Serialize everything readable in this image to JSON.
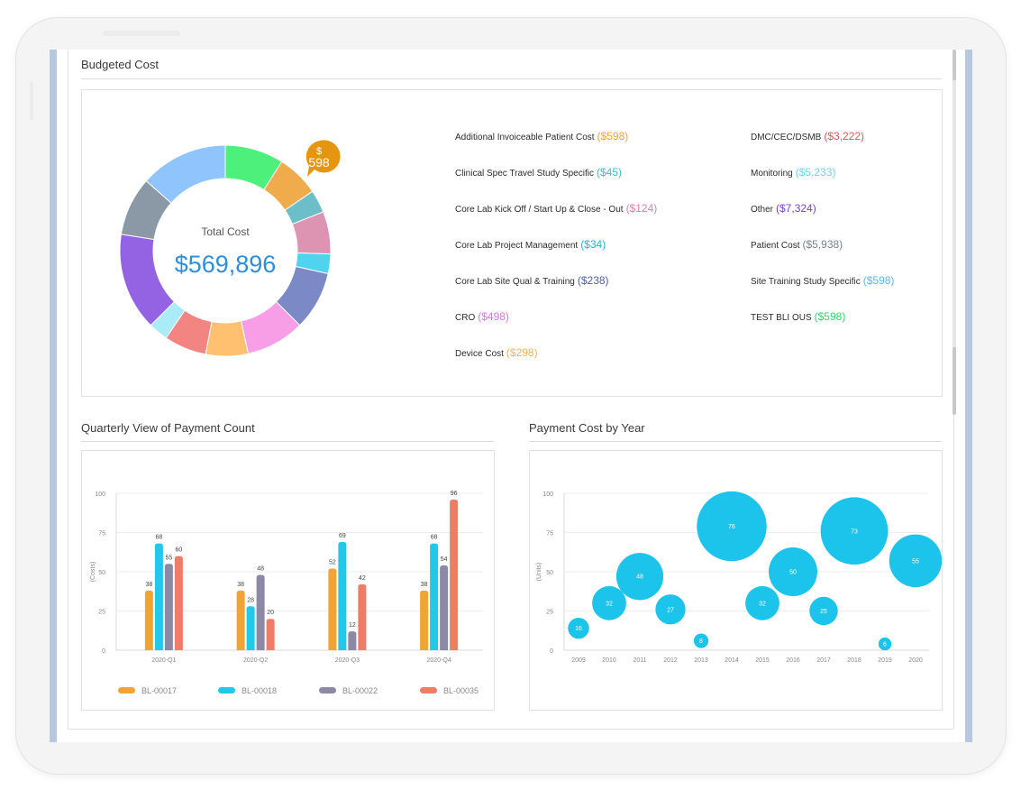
{
  "budgeted_cost": {
    "title": "Budgeted Cost",
    "center_label": "Total Cost",
    "center_value": "$569,896",
    "callout_currency": "$",
    "callout_value": "598",
    "legend": [
      {
        "label": "Additional Invoiceable Patient Cost",
        "amount": "($598)",
        "color": "#e9a43a"
      },
      {
        "label": "Clinical Spec Travel Study Specific",
        "amount": "($45)",
        "color": "#35bfd0"
      },
      {
        "label": "Core Lab Kick Off / Start Up & Close - Out",
        "amount": "($124)",
        "color": "#e07ea6"
      },
      {
        "label": "Core Lab Project Management",
        "amount": "($34)",
        "color": "#1fb6d7"
      },
      {
        "label": "Core Lab Site Qual & Training",
        "amount": "($238)",
        "color": "#4b5fa8"
      },
      {
        "label": "CRO",
        "amount": "($498)",
        "color": "#e46ee6"
      },
      {
        "label": "Device Cost",
        "amount": "($298)",
        "color": "#f5b45a"
      },
      {
        "label": "DMC/CEC/DSMB",
        "amount": "($3,222)",
        "color": "#e5545a"
      },
      {
        "label": "Monitoring",
        "amount": "($5,233)",
        "color": "#6fd3ea"
      },
      {
        "label": "Other",
        "amount": "($7,324)",
        "color": "#7f3fd6"
      },
      {
        "label": "Patient Cost",
        "amount": "($5,938)",
        "color": "#778391"
      },
      {
        "label": "Site Training Study Specific",
        "amount": "($598)",
        "color": "#5eb4f6"
      },
      {
        "label": "TEST BLI OUS",
        "amount": "($598)",
        "color": "#2fd66a"
      }
    ]
  },
  "chart_data": [
    {
      "type": "pie",
      "variant": "donut",
      "title": "Budgeted Cost",
      "segments": [
        {
          "color": "#4cf07a",
          "share": 0.09
        },
        {
          "color": "#efab4c",
          "share": 0.065
        },
        {
          "color": "#6cbfc8",
          "share": 0.035
        },
        {
          "color": "#dd93b2",
          "share": 0.065
        },
        {
          "color": "#4fd3ef",
          "share": 0.03
        },
        {
          "color": "#7b89c6",
          "share": 0.09
        },
        {
          "color": "#f79ee7",
          "share": 0.09
        },
        {
          "color": "#ffc170",
          "share": 0.065
        },
        {
          "color": "#f28482",
          "share": 0.065
        },
        {
          "color": "#a9ecf8",
          "share": 0.03
        },
        {
          "color": "#9463e3",
          "share": 0.15
        },
        {
          "color": "#8b99a6",
          "share": 0.09
        },
        {
          "color": "#8fc5fc",
          "share": 0.135
        }
      ]
    },
    {
      "type": "bar",
      "title": "Quarterly View of Payment Count",
      "ylabel": "(Costs)",
      "ylim": [
        0,
        100
      ],
      "yticks": [
        "0",
        "25",
        "50",
        "75",
        "100"
      ],
      "categories": [
        "2020-Q1",
        "2020-Q2",
        "2020-Q3",
        "2020-Q4"
      ],
      "series": [
        {
          "name": "BL-00017",
          "color": "#f0a436",
          "values": [
            38,
            38,
            52,
            38
          ]
        },
        {
          "name": "BL-00018",
          "color": "#23c7e9",
          "values": [
            68,
            28,
            69,
            68
          ]
        },
        {
          "name": "BL-00022",
          "color": "#8c88a6",
          "values": [
            55,
            48,
            12,
            54
          ]
        },
        {
          "name": "BL-00035",
          "color": "#ee7d67",
          "values": [
            60,
            20,
            42,
            96
          ]
        }
      ]
    },
    {
      "type": "scatter",
      "variant": "bubble",
      "title": "Payment Cost by Year",
      "ylabel": "(Units)",
      "ylim": [
        0,
        100
      ],
      "yticks": [
        "0",
        "25",
        "50",
        "75",
        "100"
      ],
      "color": "#1cc3ea",
      "x": [
        "2009",
        "2010",
        "2011",
        "2012",
        "2013",
        "2014",
        "2015",
        "2016",
        "2017",
        "2018",
        "2019",
        "2020"
      ],
      "points": [
        {
          "x": "2009",
          "y": 14,
          "label": "16"
        },
        {
          "x": "2010",
          "y": 30,
          "label": "32"
        },
        {
          "x": "2011",
          "y": 47,
          "label": "48"
        },
        {
          "x": "2012",
          "y": 26,
          "label": "27"
        },
        {
          "x": "2013",
          "y": 6,
          "label": "8"
        },
        {
          "x": "2014",
          "y": 79,
          "label": "76"
        },
        {
          "x": "2015",
          "y": 30,
          "label": "32"
        },
        {
          "x": "2016",
          "y": 50,
          "label": "50"
        },
        {
          "x": "2017",
          "y": 25,
          "label": "25"
        },
        {
          "x": "2018",
          "y": 76,
          "label": "73"
        },
        {
          "x": "2019",
          "y": 4,
          "label": "6"
        },
        {
          "x": "2020",
          "y": 57,
          "label": "55"
        }
      ]
    }
  ],
  "quarterly": {
    "title": "Quarterly View of Payment Count",
    "legend": [
      "BL-00017",
      "BL-00018",
      "BL-00022",
      "BL-00035"
    ]
  },
  "payment_cost": {
    "title": "Payment Cost by Year"
  }
}
